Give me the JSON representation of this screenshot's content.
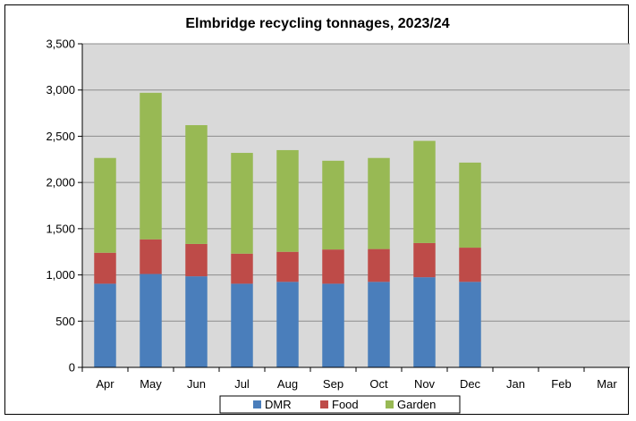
{
  "chart_data": {
    "type": "bar",
    "stacked": true,
    "title": "Elmbridge recycling tonnages, 2023/24",
    "categories": [
      "Apr",
      "May",
      "Jun",
      "Jul",
      "Aug",
      "Sep",
      "Oct",
      "Nov",
      "Dec",
      "Jan",
      "Feb",
      "Mar"
    ],
    "series": [
      {
        "name": "DMR",
        "color": "#4a7ebb",
        "values": [
          905,
          1010,
          985,
          905,
          925,
          905,
          925,
          975,
          925,
          null,
          null,
          null
        ]
      },
      {
        "name": "Food",
        "color": "#be4b48",
        "values": [
          335,
          375,
          350,
          325,
          325,
          370,
          355,
          370,
          370,
          null,
          null,
          null
        ]
      },
      {
        "name": "Garden",
        "color": "#98b954",
        "values": [
          1025,
          1585,
          1285,
          1090,
          1100,
          960,
          985,
          1105,
          920,
          null,
          null,
          null
        ]
      }
    ],
    "ylim": [
      0,
      3500
    ],
    "yticks": [
      "0",
      "500",
      "1,000",
      "1,500",
      "2,000",
      "2,500",
      "3,000",
      "3,500"
    ],
    "ytick_values": [
      0,
      500,
      1000,
      1500,
      2000,
      2500,
      3000,
      3500
    ],
    "xlabel": "",
    "ylabel": "",
    "grid": true,
    "plot_background": "#d9d9d9",
    "legend_position": "bottom"
  }
}
